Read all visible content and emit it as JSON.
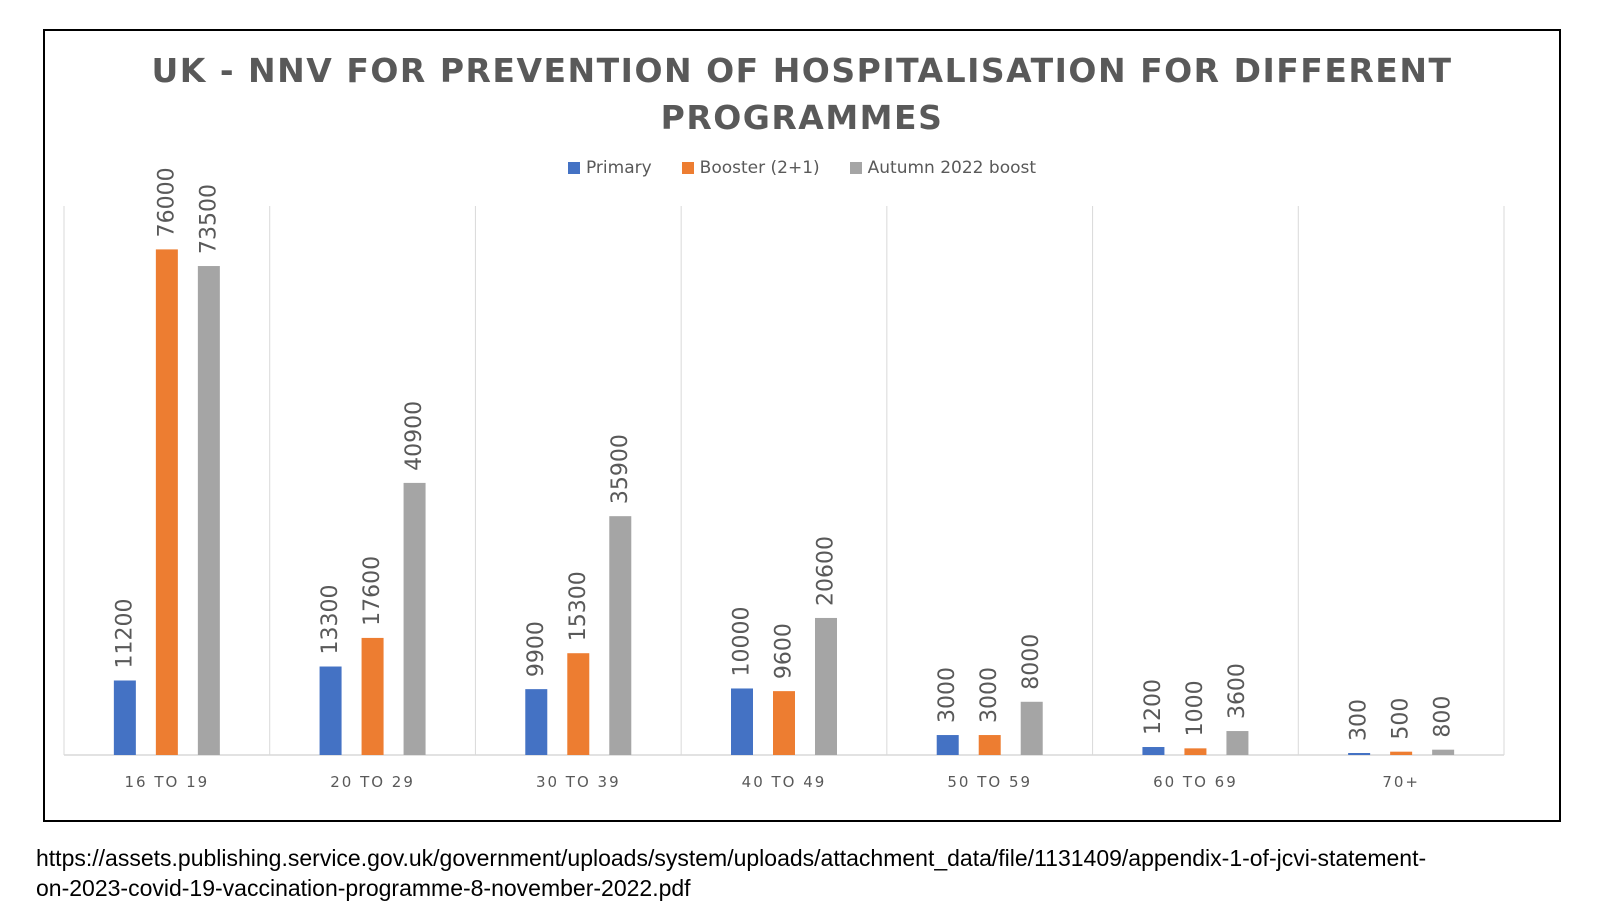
{
  "chart_data": {
    "type": "bar",
    "title_lines": [
      "UK - NNV FOR PREVENTION OF HOSPITALISATION FOR DIFFERENT",
      "PROGRAMMES"
    ],
    "categories": [
      "16 TO 19",
      "20 TO 29",
      "30 TO 39",
      "40 TO 49",
      "50 TO 59",
      "60 TO 69",
      "70+"
    ],
    "series": [
      {
        "name": "Primary",
        "color": "#4472C4",
        "values": [
          11200,
          13300,
          9900,
          10000,
          3000,
          1200,
          300
        ]
      },
      {
        "name": "Booster (2+1)",
        "color": "#ED7D31",
        "values": [
          76000,
          17600,
          15300,
          9600,
          3000,
          1000,
          500
        ]
      },
      {
        "name": "Autumn 2022 boost",
        "color": "#A5A5A5",
        "values": [
          73500,
          40900,
          35900,
          20600,
          8000,
          3600,
          800
        ]
      }
    ],
    "ylim": [
      0,
      80000
    ],
    "grid": "vertical category separators",
    "legend": "top-center",
    "data_labels": "rotated vertical above bars"
  },
  "source": {
    "line1": "https://assets.publishing.service.gov.uk/government/uploads/system/uploads/attachment_data/file/1131409/appendix-1-of-jcvi-statement-",
    "line2": "on-2023-covid-19-vaccination-programme-8-november-2022.pdf"
  }
}
